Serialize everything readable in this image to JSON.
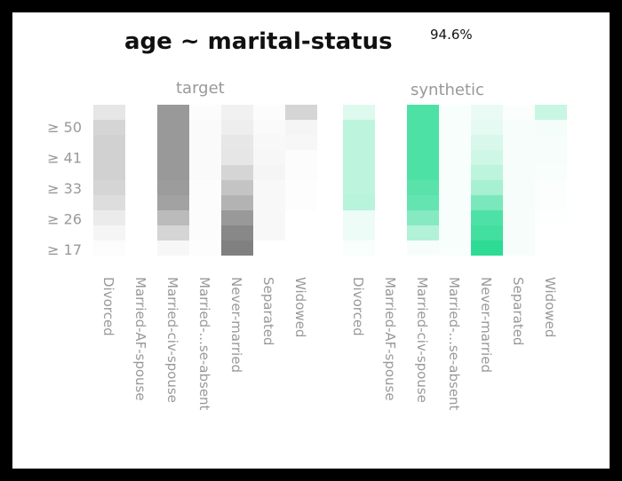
{
  "chart_data": {
    "type": "heatmap",
    "title": "age ~ marital-status",
    "score": "94.6%",
    "y_tick_labels": [
      "≥ 50",
      "≥ 41",
      "≥ 33",
      "≥ 26",
      "≥ 17"
    ],
    "categories": [
      "Divorced",
      "Married-AF-spouse",
      "Married-civ-spouse",
      "Married-...se-absent",
      "Never-married",
      "Separated",
      "Widowed"
    ],
    "panels": [
      {
        "name": "target",
        "color": "#555555",
        "values": [
          [
            0.15,
            0.25,
            0.27,
            0.27,
            0.27,
            0.25,
            0.2,
            0.12,
            0.06,
            0.02
          ],
          [
            0,
            0,
            0,
            0,
            0,
            0,
            0,
            0,
            0,
            0
          ],
          [
            0.6,
            0.6,
            0.6,
            0.6,
            0.6,
            0.58,
            0.55,
            0.4,
            0.25,
            0.05
          ],
          [
            0.02,
            0.03,
            0.03,
            0.03,
            0.03,
            0.02,
            0.02,
            0.02,
            0.02,
            0.01
          ],
          [
            0.08,
            0.1,
            0.14,
            0.15,
            0.25,
            0.35,
            0.45,
            0.6,
            0.7,
            0.75
          ],
          [
            0.02,
            0.03,
            0.04,
            0.05,
            0.06,
            0.04,
            0.04,
            0.04,
            0.04,
            0
          ],
          [
            0.25,
            0.06,
            0.05,
            0.02,
            0.02,
            0.01,
            0.01,
            0,
            0,
            0
          ]
        ]
      },
      {
        "name": "synthetic",
        "color": "#22d98f",
        "values": [
          [
            0.15,
            0.3,
            0.3,
            0.3,
            0.3,
            0.3,
            0.32,
            0.08,
            0.08,
            0.03
          ],
          [
            0,
            0,
            0,
            0,
            0,
            0,
            0,
            0,
            0,
            0
          ],
          [
            0.8,
            0.8,
            0.8,
            0.8,
            0.8,
            0.75,
            0.7,
            0.55,
            0.35,
            0.04
          ],
          [
            0.03,
            0.03,
            0.03,
            0.03,
            0.03,
            0.03,
            0.03,
            0.03,
            0.03,
            0.03
          ],
          [
            0.1,
            0.12,
            0.18,
            0.22,
            0.3,
            0.4,
            0.6,
            0.8,
            0.85,
            0.95
          ],
          [
            0.02,
            0.04,
            0.04,
            0.04,
            0.04,
            0.04,
            0.04,
            0.04,
            0.04,
            0.04
          ],
          [
            0.25,
            0.05,
            0.04,
            0.04,
            0.03,
            0.02,
            0.02,
            0.01,
            0,
            0
          ]
        ]
      }
    ]
  }
}
